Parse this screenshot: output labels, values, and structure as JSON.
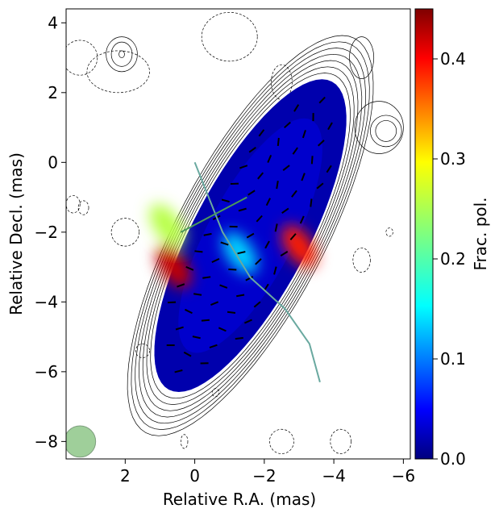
{
  "chart_data": {
    "type": "heatmap",
    "xlabel": "Relative R.A. (mas)",
    "ylabel": "Relative Decl. (mas)",
    "colorbar_label": "Frac. pol.",
    "xlim": [
      3.7,
      -6.2
    ],
    "ylim": [
      -8.5,
      4.4
    ],
    "x_ticks": [
      2,
      0,
      -2,
      -4,
      -6
    ],
    "x_tick_labels": [
      "2",
      "0",
      "−2",
      "−4",
      "−6"
    ],
    "y_ticks": [
      4,
      2,
      0,
      -2,
      -4,
      -6,
      -8
    ],
    "y_tick_labels": [
      "4",
      "2",
      "0",
      "−2",
      "−4",
      "−6",
      "−8"
    ],
    "colorbar_range": [
      0,
      0.45
    ],
    "colorbar_ticks": [
      0.0,
      0.1,
      0.2,
      0.3,
      0.4
    ],
    "colorbar_tick_labels": [
      "0.0",
      "0.1",
      "0.2",
      "0.3",
      "0.4"
    ],
    "colormap": "jet",
    "beam": {
      "x": 3.3,
      "y": -8.0,
      "radius": 0.45,
      "color": "#9fcf9a"
    },
    "jet_ridge_line": {
      "color": "#6aa9a0",
      "points": [
        [
          0.0,
          0.0
        ],
        [
          -0.8,
          -2.0
        ],
        [
          -1.6,
          -3.3
        ],
        [
          -2.6,
          -4.2
        ],
        [
          -3.3,
          -5.2
        ],
        [
          -3.6,
          -6.3
        ]
      ]
    },
    "secondary_line": {
      "color": "#4b9a5a",
      "points": [
        [
          0.4,
          -2.0
        ],
        [
          -1.5,
          -1.0
        ]
      ]
    },
    "high_pol_regions": [
      {
        "x": 0.6,
        "y": -3.0,
        "value": 0.42
      },
      {
        "x": -3.0,
        "y": -2.4,
        "value": 0.38
      },
      {
        "x": 0.8,
        "y": -1.8,
        "value": 0.25
      },
      {
        "x": -1.3,
        "y": -2.6,
        "value": 0.15
      }
    ]
  }
}
